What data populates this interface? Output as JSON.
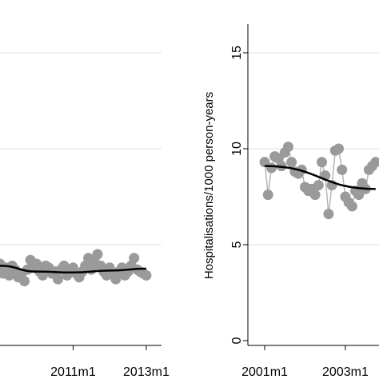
{
  "chart_data": [
    {
      "type": "scatter",
      "title": "",
      "xlabel": "",
      "ylabel": "",
      "x_ticks": [
        "2011m1",
        "2013m1"
      ],
      "xlim": [
        "2009m1",
        "2013m6"
      ],
      "ylim": [
        0,
        15
      ],
      "grid": true,
      "series": [
        {
          "type": "scatter",
          "color": "#9a9a9a",
          "x": [
            "2009m1",
            "2009m2",
            "2009m3",
            "2009m4",
            "2009m5",
            "2009m6",
            "2009m7",
            "2009m8",
            "2009m9",
            "2009m10",
            "2009m11",
            "2009m12",
            "2010m1",
            "2010m2",
            "2010m3",
            "2010m4",
            "2010m5",
            "2010m6",
            "2010m7",
            "2010m8",
            "2010m9",
            "2010m10",
            "2010m11",
            "2010m12",
            "2011m1",
            "2011m2",
            "2011m3",
            "2011m4",
            "2011m5",
            "2011m6",
            "2011m7",
            "2011m8",
            "2011m9",
            "2011m10",
            "2011m11",
            "2011m12",
            "2012m1",
            "2012m2",
            "2012m3",
            "2012m4",
            "2012m5",
            "2012m6",
            "2012m7",
            "2012m8",
            "2012m9",
            "2012m10",
            "2012m11",
            "2012m12",
            "2013m1"
          ],
          "y": [
            4.0,
            3.5,
            3.8,
            3.4,
            3.9,
            3.7,
            3.3,
            3.5,
            3.1,
            3.7,
            4.2,
            3.8,
            4.0,
            3.6,
            3.4,
            3.9,
            3.8,
            3.5,
            3.6,
            3.2,
            3.7,
            3.9,
            3.4,
            3.6,
            3.8,
            3.5,
            3.3,
            3.6,
            3.9,
            4.3,
            3.7,
            4.1,
            4.5,
            3.9,
            3.6,
            3.4,
            3.8,
            3.5,
            3.2,
            3.6,
            3.8,
            3.4,
            3.6,
            3.9,
            4.3,
            3.7,
            3.6,
            3.5,
            3.4
          ]
        },
        {
          "type": "line",
          "color": "#000000",
          "x": [
            "2009m1",
            "2010m1",
            "2011m1",
            "2012m1",
            "2013m1"
          ],
          "y": [
            3.9,
            3.6,
            3.55,
            3.65,
            3.75
          ]
        }
      ]
    },
    {
      "type": "scatter",
      "title": "",
      "xlabel": "",
      "ylabel": "Hospitalisations/1000 person-years",
      "x_ticks": [
        "2001m1",
        "2003m1"
      ],
      "y_ticks": [
        "0",
        "5",
        "10",
        "15"
      ],
      "xlim": [
        "2000m8",
        "2003m11"
      ],
      "ylim": [
        0,
        15
      ],
      "grid": true,
      "series": [
        {
          "type": "scatter",
          "color": "#9a9a9a",
          "x": [
            "2001m1",
            "2001m2",
            "2001m3",
            "2001m4",
            "2001m5",
            "2001m6",
            "2001m7",
            "2001m8",
            "2001m9",
            "2001m10",
            "2001m11",
            "2001m12",
            "2002m1",
            "2002m2",
            "2002m3",
            "2002m4",
            "2002m5",
            "2002m6",
            "2002m7",
            "2002m8",
            "2002m9",
            "2002m10",
            "2002m11",
            "2002m12",
            "2003m1",
            "2003m2",
            "2003m3",
            "2003m4",
            "2003m5",
            "2003m6",
            "2003m7",
            "2003m8",
            "2003m9",
            "2003m10"
          ],
          "y": [
            9.3,
            7.6,
            9.0,
            9.6,
            9.5,
            9.1,
            9.8,
            10.1,
            9.3,
            8.8,
            8.7,
            8.9,
            8.0,
            7.8,
            7.9,
            7.6,
            8.1,
            9.3,
            8.6,
            6.6,
            8.1,
            9.9,
            10.0,
            8.9,
            7.5,
            7.2,
            7.0,
            7.8,
            7.6,
            8.2,
            7.9,
            8.9,
            9.1,
            9.3
          ]
        },
        {
          "type": "line",
          "color": "#000000",
          "x": [
            "2001m1",
            "2003m10"
          ],
          "y": [
            9.1,
            7.9
          ]
        }
      ]
    }
  ]
}
